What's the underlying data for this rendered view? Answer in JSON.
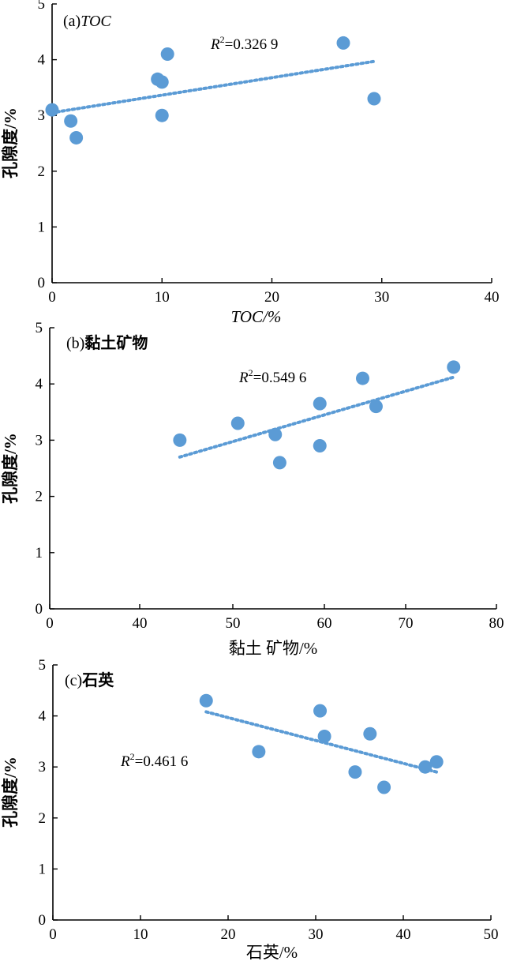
{
  "chart_data": [
    {
      "type": "scatter",
      "panel_label": "(a)",
      "panel_name": "TOC",
      "xlabel": "TOC/%",
      "ylabel": "孔隙度/%",
      "xlim": [
        0,
        40
      ],
      "ylim": [
        0,
        5
      ],
      "xticks": [
        "0",
        "10",
        "20",
        "30",
        "40"
      ],
      "yticks": [
        "0",
        "1",
        "2",
        "3",
        "4",
        "5"
      ],
      "x": [
        0.0,
        1.7,
        2.2,
        9.6,
        10.0,
        10.0,
        10.5,
        26.5,
        29.3
      ],
      "y": [
        3.1,
        2.9,
        2.6,
        3.65,
        3.6,
        3.0,
        4.1,
        4.3,
        3.3
      ],
      "trendline": {
        "x": [
          0.0,
          29.3
        ],
        "y": [
          3.05,
          3.97
        ]
      },
      "r2_prefix": "R",
      "r2_sup": "2",
      "r2_value": "=0.326 9",
      "marker_color": "#5b9bd5"
    },
    {
      "type": "scatter",
      "panel_label": "(b)",
      "panel_name": "黏土矿物",
      "xlabel": "黏土 矿物/%",
      "ylabel": "孔隙度/%",
      "xlim": [
        30,
        80
      ],
      "ylim": [
        0,
        5
      ],
      "xticks": [
        "0",
        "40",
        "50",
        "60",
        "70",
        "80"
      ],
      "yticks": [
        "0",
        "1",
        "2",
        "3",
        "4",
        "5"
      ],
      "x": [
        44.5,
        51.0,
        55.2,
        55.7,
        60.2,
        60.2,
        65.0,
        66.5,
        75.2
      ],
      "y": [
        3.0,
        3.3,
        3.1,
        2.6,
        3.65,
        2.9,
        4.1,
        3.6,
        4.3
      ],
      "trendline": {
        "x": [
          44.5,
          75.2
        ],
        "y": [
          2.7,
          4.12
        ]
      },
      "r2_prefix": "R",
      "r2_sup": "2",
      "r2_value": "=0.549 6",
      "marker_color": "#5b9bd5"
    },
    {
      "type": "scatter",
      "panel_label": "(c)",
      "panel_name": "石英",
      "xlabel": "石英/%",
      "ylabel": "孔隙度/%",
      "xlim": [
        0,
        50
      ],
      "ylim": [
        0,
        5
      ],
      "xticks": [
        "0",
        "10",
        "20",
        "30",
        "40",
        "50"
      ],
      "yticks": [
        "0",
        "1",
        "2",
        "3",
        "4",
        "5"
      ],
      "x": [
        17.5,
        23.5,
        30.5,
        31.0,
        34.5,
        36.2,
        37.8,
        42.5,
        43.8
      ],
      "y": [
        4.3,
        3.3,
        4.1,
        3.6,
        2.9,
        3.65,
        2.6,
        3.0,
        3.1
      ],
      "trendline": {
        "x": [
          17.5,
          43.8
        ],
        "y": [
          4.08,
          2.9
        ]
      },
      "r2_prefix": "R",
      "r2_sup": "2",
      "r2_value": "=0.461 6",
      "marker_color": "#5b9bd5"
    }
  ]
}
